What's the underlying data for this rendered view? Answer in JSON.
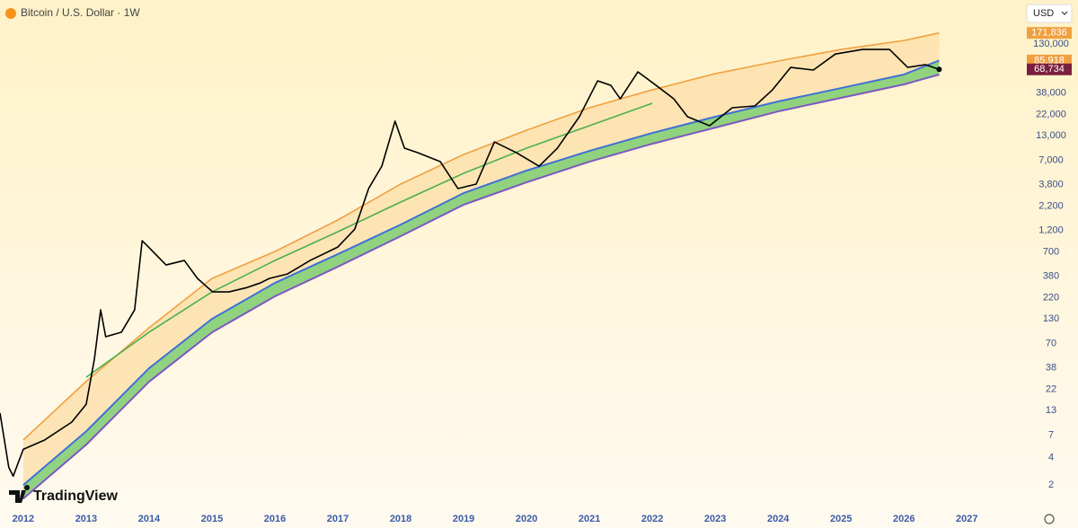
{
  "chart_data": {
    "type": "line",
    "title": "Bitcoin / U.S. Dollar · 1W",
    "currency": "USD",
    "brand": "TradingView",
    "log_y": true,
    "xlim": [
      2011.63,
      2027.91
    ],
    "ylim": [
      1.14,
      393000
    ],
    "xticks": [
      2012,
      2013,
      2014,
      2015,
      2016,
      2017,
      2018,
      2019,
      2020,
      2021,
      2022,
      2023,
      2024,
      2025,
      2026,
      2027
    ],
    "yticks": [
      2,
      4,
      7,
      13,
      22,
      38,
      70,
      130,
      220,
      380,
      700,
      {
        "value": 1200,
        "label": "1,200"
      },
      {
        "value": 2200,
        "label": "2,200"
      },
      {
        "value": 3800,
        "label": "3,800"
      },
      {
        "value": 7000,
        "label": "7,000"
      },
      {
        "value": 13000,
        "label": "13,000"
      },
      {
        "value": 22000,
        "label": "22,000"
      },
      {
        "value": 38000,
        "label": "38,000"
      },
      {
        "value": 130000,
        "label": "130,000"
      }
    ],
    "series": [
      {
        "color": "#000000",
        "width": 1.6,
        "x": [
          2011.63,
          2011.77,
          2011.84,
          2012.0,
          2012.34,
          2012.77,
          2013.0,
          2013.13,
          2013.23,
          2013.31,
          2013.56,
          2013.77,
          2013.89,
          2013.99,
          2014.13,
          2014.27,
          2014.56,
          2014.77,
          2015.01,
          2015.27,
          2015.56,
          2015.77,
          2015.91,
          2016.2,
          2016.56,
          2017.0,
          2017.27,
          2017.49,
          2017.7,
          2017.91,
          2018.06,
          2018.27,
          2018.63,
          2018.91,
          2019.2,
          2019.49,
          2019.84,
          2020.2,
          2020.49,
          2020.84,
          2021.13,
          2021.34,
          2021.49,
          2021.77,
          2022.06,
          2022.34,
          2022.56,
          2022.91,
          2023.27,
          2023.63,
          2023.91,
          2024.2,
          2024.56,
          2024.91,
          2025.34,
          2025.77,
          2026.06,
          2026.34,
          2026.56
        ],
        "values": [
          12.2,
          3.1,
          2.5,
          4.9,
          6.2,
          9.7,
          15.2,
          47,
          163,
          83,
          93,
          163,
          927,
          791,
          631,
          504,
          564,
          359,
          256,
          256,
          286,
          321,
          359,
          402,
          564,
          791,
          1240,
          3440,
          6040,
          18700,
          9480,
          8470,
          6760,
          3440,
          3850,
          11100,
          8470,
          6040,
          9480,
          20900,
          51500,
          46000,
          32800,
          64600,
          46000,
          32800,
          20900,
          16700,
          26200,
          27400,
          41100,
          72300,
          67600,
          101000,
          113500,
          113500,
          72300,
          77400,
          68734
        ]
      },
      {
        "color": "#f0a040",
        "width": 1.6,
        "fill": "#fde0ad",
        "x": [
          2012,
          2013,
          2014,
          2015,
          2016,
          2017,
          2018,
          2019,
          2020,
          2021,
          2022,
          2023,
          2024,
          2025,
          2026,
          2026.56
        ],
        "values": [
          6.2,
          27,
          104,
          359,
          706,
          1560,
          3850,
          8090,
          14900,
          26200,
          41100,
          61700,
          84700,
          113500,
          142000,
          171836
        ]
      },
      {
        "color": "#3f6fd8",
        "width": 2,
        "fill": "#7dcb6e",
        "x": [
          2012,
          2013,
          2014,
          2015,
          2016,
          2017,
          2018,
          2019,
          2020,
          2021,
          2022,
          2023,
          2024,
          2025,
          2026,
          2026.56
        ],
        "values": [
          2.0,
          7.7,
          37.6,
          130,
          321,
          661,
          1390,
          3070,
          5400,
          8850,
          13900,
          20900,
          30700,
          43000,
          60400,
          85918
        ]
      },
      {
        "color": "#7e57c2",
        "width": 2,
        "x": [
          2012,
          2013,
          2014,
          2015,
          2016,
          2017,
          2018,
          2019,
          2020,
          2021,
          2022,
          2023,
          2024,
          2025,
          2026,
          2026.56
        ],
        "values": [
          1.42,
          5.5,
          26.8,
          92.7,
          229,
          482,
          1040,
          2290,
          4020,
          6760,
          10600,
          15900,
          23900,
          33600,
          47100,
          60400
        ]
      },
      {
        "color": "#4caf50",
        "width": 1.6,
        "x": [
          2013,
          2014,
          2015,
          2016,
          2017,
          2018,
          2019,
          2020,
          2021,
          2022
        ],
        "values": [
          30,
          93,
          256,
          564,
          1160,
          2450,
          5040,
          9480,
          16700,
          29300
        ]
      }
    ],
    "price_labels": [
      {
        "value": 171836,
        "label": "171,836",
        "color": "#f0a040"
      },
      {
        "value": 85918,
        "label": "85,918",
        "color": "#f0a040"
      },
      {
        "value": 68734,
        "label": "68,734",
        "color": "#7a1f3d"
      }
    ]
  }
}
